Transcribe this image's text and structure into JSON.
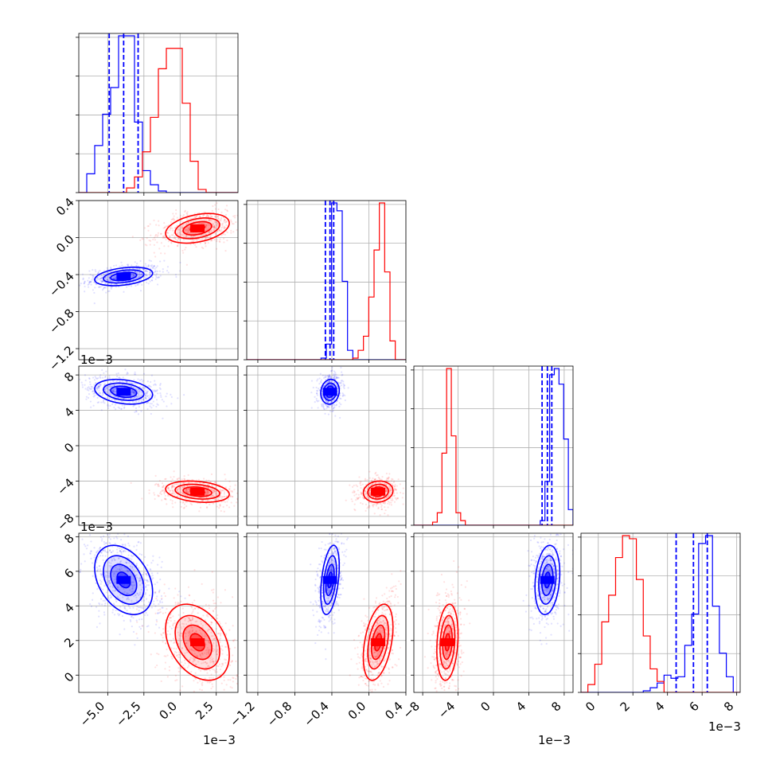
{
  "chart_data": {
    "type": "corner",
    "grid": true,
    "colors": {
      "series_a": "#0000ff",
      "series_b": "#ff0000"
    },
    "series": [
      {
        "color": "#0000ff",
        "mean": [
          -0.0039,
          -0.42,
          0.0061,
          0.0055
        ],
        "std": [
          0.001,
          0.05,
          0.0007,
          0.001
        ],
        "quantiles": [
          [
            -0.0049,
            -0.0039,
            -0.0029
          ],
          [
            -0.47,
            -0.42,
            -0.38
          ],
          [
            0.0055,
            0.0061,
            0.0066
          ],
          [
            0.0045,
            0.0055,
            0.0063
          ]
        ],
        "hist": [
          [
            0.0,
            0.12,
            0.3,
            0.5,
            0.67,
            1.0,
            1.0,
            0.45,
            0.14,
            0.05,
            0.01,
            0.0,
            0.0,
            0.0,
            0.0,
            0.0,
            0.0,
            0.0,
            0.0,
            0.0
          ],
          [
            0.0,
            0.0,
            0.0,
            0.0,
            0.0,
            0.0,
            0.0,
            0.0,
            0.0,
            0.0,
            0.0,
            0.0,
            0.0,
            0.0,
            0.01,
            0.1,
            1.0,
            0.95,
            0.5,
            0.06,
            0.0,
            0.0,
            0.0,
            0.0,
            0.0,
            0.0,
            0.0,
            0.0,
            0.0,
            0.0
          ],
          [
            0.0,
            0.0,
            0.0,
            0.0,
            0.0,
            0.0,
            0.0,
            0.0,
            0.0,
            0.0,
            0.0,
            0.0,
            0.0,
            0.0,
            0.0,
            0.0,
            0.0,
            0.0,
            0.0,
            0.0,
            0.0,
            0.0,
            0.0,
            0.0,
            0.0,
            0.0,
            0.0,
            0.03,
            0.28,
            0.96,
            1.0,
            0.9,
            0.55,
            0.1
          ],
          [
            0.0,
            0.0,
            0.0,
            0.0,
            0.0,
            0.0,
            0.0,
            0.0,
            0.0,
            0.01,
            0.03,
            0.06,
            0.11,
            0.09,
            0.1,
            0.3,
            0.5,
            0.95,
            1.0,
            0.55,
            0.25,
            0.1,
            0.0
          ]
        ]
      },
      {
        "color": "#ff0000",
        "mean": [
          0.0012,
          0.1,
          -0.0052,
          0.0019
        ],
        "std": [
          0.0011,
          0.08,
          0.0006,
          0.0011
        ],
        "quantiles": null,
        "hist": [
          [
            0.0,
            0.0,
            0.0,
            0.0,
            0.0,
            0.0,
            0.03,
            0.1,
            0.26,
            0.48,
            0.79,
            0.92,
            0.92,
            0.57,
            0.2,
            0.02,
            0.0,
            0.0,
            0.0,
            0.0
          ],
          [
            0.0,
            0.0,
            0.0,
            0.0,
            0.0,
            0.0,
            0.0,
            0.0,
            0.0,
            0.0,
            0.0,
            0.0,
            0.0,
            0.0,
            0.0,
            0.0,
            0.0,
            0.0,
            0.0,
            0.0,
            0.01,
            0.06,
            0.15,
            0.4,
            0.7,
            1.0,
            0.56,
            0.12,
            0.0,
            0.0
          ],
          [
            0.0,
            0.0,
            0.0,
            0.0,
            0.02,
            0.08,
            0.46,
            1.0,
            0.57,
            0.08,
            0.03,
            0.0,
            0.0,
            0.0,
            0.0,
            0.0,
            0.0,
            0.0,
            0.0,
            0.0,
            0.0,
            0.0,
            0.0,
            0.0,
            0.0,
            0.0,
            0.0,
            0.0,
            0.0,
            0.0,
            0.0,
            0.0,
            0.0,
            0.0
          ],
          [
            0.0,
            0.05,
            0.18,
            0.45,
            0.62,
            0.86,
            1.0,
            0.98,
            0.72,
            0.36,
            0.15,
            0.07,
            0.0,
            0.0,
            0.0,
            0.0,
            0.0,
            0.0,
            0.0,
            0.0,
            0.0,
            0.0,
            0.0
          ]
        ]
      }
    ],
    "correlations": [
      [
        0,
        0,
        0,
        0
      ],
      [
        0.35,
        0,
        0,
        0
      ],
      [
        -0.25,
        0.1,
        0,
        0
      ],
      [
        -0.35,
        0.4,
        0.2,
        0
      ]
    ],
    "axes": [
      {
        "range": [
          -0.007,
          0.004
        ],
        "ticks": [
          -0.005,
          -0.0025,
          0.0,
          0.0025
        ],
        "tick_labels": [
          "−5.0",
          "−2.5",
          "0.0",
          "2.5"
        ],
        "offset_label": "1e−3"
      },
      {
        "range": [
          -1.32,
          0.4
        ],
        "ticks": [
          -1.2,
          -0.8,
          -0.4,
          0.0,
          0.4
        ],
        "tick_labels": [
          "−1.2",
          "−0.8",
          "−0.4",
          "0.0",
          "0.4"
        ],
        "offset_label": ""
      },
      {
        "range": [
          -0.009,
          0.009
        ],
        "ticks": [
          -0.008,
          -0.004,
          0.0,
          0.004,
          0.008
        ],
        "tick_labels": [
          "−8",
          "−4",
          "0",
          "4",
          "8"
        ],
        "offset_label": "1e−3"
      },
      {
        "range": [
          -0.001,
          0.0082
        ],
        "ticks": [
          0.0,
          0.002,
          0.004,
          0.006,
          0.008
        ],
        "tick_labels": [
          "0",
          "2",
          "4",
          "6",
          "8"
        ],
        "offset_label": "1e−3"
      }
    ]
  }
}
